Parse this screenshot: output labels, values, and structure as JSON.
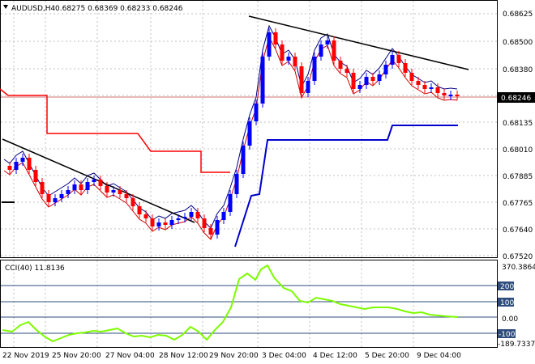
{
  "header": {
    "symbol_label": "AUDUSD,H4",
    "ohlc_text": "0.68275 0.68369 0.68233 0.68246"
  },
  "price_panel": {
    "current_price_label": "0.68246",
    "axis_labels": [
      "0.68625",
      "0.68500",
      "0.68380",
      "0.68135",
      "0.68010",
      "0.67885",
      "0.67765",
      "0.67640",
      "0.67520"
    ],
    "current_marker_color": "#000000"
  },
  "cci_panel": {
    "title": "CCI(40) 11.8136",
    "axis_labels": [
      "370.3864",
      "200",
      "100",
      "0.00",
      "-100",
      "-189.7337"
    ],
    "level_badges": [
      "200",
      "100",
      "-100"
    ],
    "badge_color": "#2e4d7c",
    "line_color": "#7cfc00"
  },
  "time_axis": {
    "labels": [
      "22 Nov 2019",
      "25 Nov 20:00",
      "27 Nov 04:00",
      "28 Nov 12:00",
      "29 Nov 20:00",
      "3 Dec 04:00",
      "4 Dec 12:00",
      "5 Dec 20:00",
      "9 Dec 04:00"
    ]
  },
  "colors": {
    "bull_candle": "#0000ff",
    "bear_candle": "#ff0000",
    "ma_line": "#cc0000",
    "band_line": "#000080",
    "support_line": "#0000cc",
    "trendline": "#000000",
    "chandelier": "#ff0000",
    "grid": "#c0c0c0"
  }
}
